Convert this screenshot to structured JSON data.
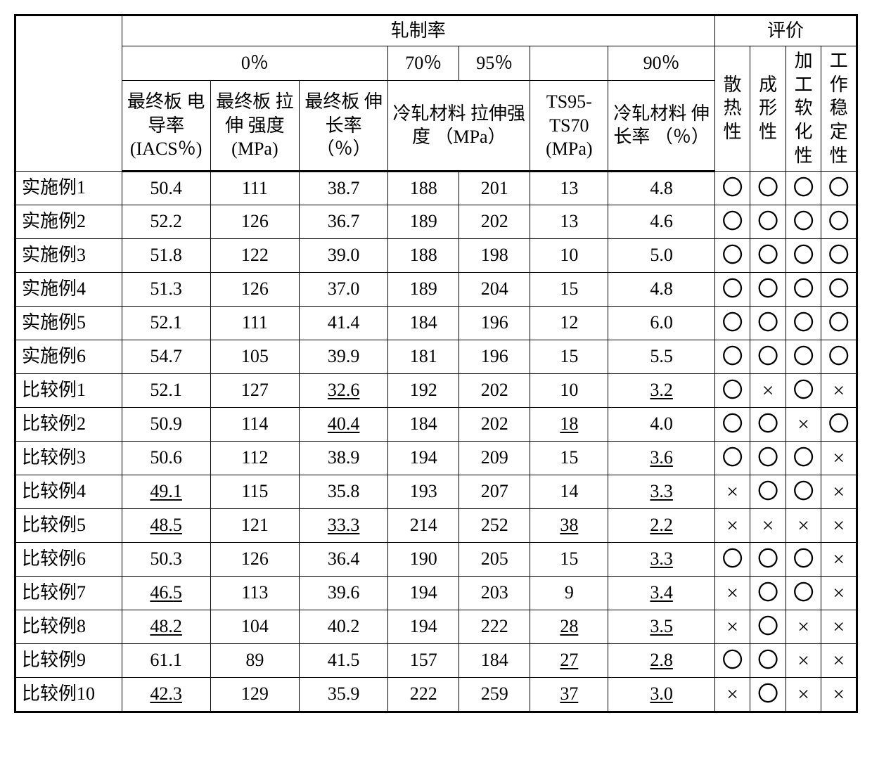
{
  "headers": {
    "rolling_rate": "轧制率",
    "evaluation": "评价",
    "pct0": "0％",
    "pct70": "70％",
    "pct95": "95％",
    "pct90": "90％",
    "cond": "最终板\n电导率\n(IACS％)",
    "ts0": "最终板\n拉伸\n强度\n(MPa)",
    "el0": "最终板\n伸长率\n（％）",
    "cold_ts": "冷轧材料\n拉伸强度\n（MPa）",
    "ts_diff": "TS95-\nTS70\n(MPa)",
    "cold_el": "冷轧材料\n伸长率\n（％）",
    "eval1": "散\n热\n性",
    "eval2": "成\n形\n性",
    "eval3": "加\n工\n软\n化\n性",
    "eval4": "工\n作\n稳\n定\n性"
  },
  "marks": {
    "o": "〇",
    "x": "×"
  },
  "rows": [
    {
      "label": "实施例1",
      "cond": {
        "v": "50.4"
      },
      "ts0": {
        "v": "111"
      },
      "el0": {
        "v": "38.7"
      },
      "ts70": {
        "v": "188"
      },
      "ts95": {
        "v": "201"
      },
      "diff": {
        "v": "13"
      },
      "coldel": {
        "v": "4.8"
      },
      "e": [
        "o",
        "o",
        "o",
        "o"
      ]
    },
    {
      "label": "实施例2",
      "cond": {
        "v": "52.2"
      },
      "ts0": {
        "v": "126"
      },
      "el0": {
        "v": "36.7"
      },
      "ts70": {
        "v": "189"
      },
      "ts95": {
        "v": "202"
      },
      "diff": {
        "v": "13"
      },
      "coldel": {
        "v": "4.6"
      },
      "e": [
        "o",
        "o",
        "o",
        "o"
      ]
    },
    {
      "label": "实施例3",
      "cond": {
        "v": "51.8"
      },
      "ts0": {
        "v": "122"
      },
      "el0": {
        "v": "39.0"
      },
      "ts70": {
        "v": "188"
      },
      "ts95": {
        "v": "198"
      },
      "diff": {
        "v": "10"
      },
      "coldel": {
        "v": "5.0"
      },
      "e": [
        "o",
        "o",
        "o",
        "o"
      ]
    },
    {
      "label": "实施例4",
      "cond": {
        "v": "51.3"
      },
      "ts0": {
        "v": "126"
      },
      "el0": {
        "v": "37.0"
      },
      "ts70": {
        "v": "189"
      },
      "ts95": {
        "v": "204"
      },
      "diff": {
        "v": "15"
      },
      "coldel": {
        "v": "4.8"
      },
      "e": [
        "o",
        "o",
        "o",
        "o"
      ]
    },
    {
      "label": "实施例5",
      "cond": {
        "v": "52.1"
      },
      "ts0": {
        "v": "111"
      },
      "el0": {
        "v": "41.4"
      },
      "ts70": {
        "v": "184"
      },
      "ts95": {
        "v": "196"
      },
      "diff": {
        "v": "12"
      },
      "coldel": {
        "v": "6.0"
      },
      "e": [
        "o",
        "o",
        "o",
        "o"
      ]
    },
    {
      "label": "实施例6",
      "cond": {
        "v": "54.7"
      },
      "ts0": {
        "v": "105"
      },
      "el0": {
        "v": "39.9"
      },
      "ts70": {
        "v": "181"
      },
      "ts95": {
        "v": "196"
      },
      "diff": {
        "v": "15"
      },
      "coldel": {
        "v": "5.5"
      },
      "e": [
        "o",
        "o",
        "o",
        "o"
      ]
    },
    {
      "label": "比较例1",
      "cond": {
        "v": "52.1"
      },
      "ts0": {
        "v": "127"
      },
      "el0": {
        "v": "32.6",
        "u": true
      },
      "ts70": {
        "v": "192"
      },
      "ts95": {
        "v": "202"
      },
      "diff": {
        "v": "10"
      },
      "coldel": {
        "v": "3.2",
        "u": true
      },
      "e": [
        "o",
        "x",
        "o",
        "x"
      ]
    },
    {
      "label": "比较例2",
      "cond": {
        "v": "50.9"
      },
      "ts0": {
        "v": "114"
      },
      "el0": {
        "v": "40.4",
        "u": true
      },
      "ts70": {
        "v": "184"
      },
      "ts95": {
        "v": "202"
      },
      "diff": {
        "v": "18",
        "u": true
      },
      "coldel": {
        "v": "4.0"
      },
      "e": [
        "o",
        "o",
        "x",
        "o"
      ]
    },
    {
      "label": "比较例3",
      "cond": {
        "v": "50.6"
      },
      "ts0": {
        "v": "112"
      },
      "el0": {
        "v": "38.9"
      },
      "ts70": {
        "v": "194"
      },
      "ts95": {
        "v": "209"
      },
      "diff": {
        "v": "15"
      },
      "coldel": {
        "v": "3.6",
        "u": true
      },
      "e": [
        "o",
        "o",
        "o",
        "x"
      ]
    },
    {
      "label": "比较例4",
      "cond": {
        "v": "49.1",
        "u": true
      },
      "ts0": {
        "v": "115"
      },
      "el0": {
        "v": "35.8"
      },
      "ts70": {
        "v": "193"
      },
      "ts95": {
        "v": "207"
      },
      "diff": {
        "v": "14"
      },
      "coldel": {
        "v": "3.3",
        "u": true
      },
      "e": [
        "x",
        "o",
        "o",
        "x"
      ]
    },
    {
      "label": "比较例5",
      "cond": {
        "v": "48.5",
        "u": true
      },
      "ts0": {
        "v": "121"
      },
      "el0": {
        "v": "33.3",
        "u": true
      },
      "ts70": {
        "v": "214"
      },
      "ts95": {
        "v": "252"
      },
      "diff": {
        "v": "38",
        "u": true
      },
      "coldel": {
        "v": "2.2",
        "u": true
      },
      "e": [
        "x",
        "x",
        "x",
        "x"
      ]
    },
    {
      "label": "比较例6",
      "cond": {
        "v": "50.3"
      },
      "ts0": {
        "v": "126"
      },
      "el0": {
        "v": "36.4"
      },
      "ts70": {
        "v": "190"
      },
      "ts95": {
        "v": "205"
      },
      "diff": {
        "v": "15"
      },
      "coldel": {
        "v": "3.3",
        "u": true
      },
      "e": [
        "o",
        "o",
        "o",
        "x"
      ]
    },
    {
      "label": "比较例7",
      "cond": {
        "v": "46.5",
        "u": true
      },
      "ts0": {
        "v": "113"
      },
      "el0": {
        "v": "39.6"
      },
      "ts70": {
        "v": "194"
      },
      "ts95": {
        "v": "203"
      },
      "diff": {
        "v": "9"
      },
      "coldel": {
        "v": "3.4",
        "u": true
      },
      "e": [
        "x",
        "o",
        "o",
        "x"
      ]
    },
    {
      "label": "比较例8",
      "cond": {
        "v": "48.2",
        "u": true
      },
      "ts0": {
        "v": "104"
      },
      "el0": {
        "v": "40.2"
      },
      "ts70": {
        "v": "194"
      },
      "ts95": {
        "v": "222"
      },
      "diff": {
        "v": "28",
        "u": true
      },
      "coldel": {
        "v": "3.5",
        "u": true
      },
      "e": [
        "x",
        "o",
        "x",
        "x"
      ]
    },
    {
      "label": "比较例9",
      "cond": {
        "v": "61.1"
      },
      "ts0": {
        "v": "89"
      },
      "el0": {
        "v": "41.5"
      },
      "ts70": {
        "v": "157"
      },
      "ts95": {
        "v": "184"
      },
      "diff": {
        "v": "27",
        "u": true
      },
      "coldel": {
        "v": "2.8",
        "u": true
      },
      "e": [
        "o",
        "o",
        "x",
        "x"
      ]
    },
    {
      "label": "比较例10",
      "cond": {
        "v": "42.3",
        "u": true
      },
      "ts0": {
        "v": "129"
      },
      "el0": {
        "v": "35.9"
      },
      "ts70": {
        "v": "222"
      },
      "ts95": {
        "v": "259"
      },
      "diff": {
        "v": "37",
        "u": true
      },
      "coldel": {
        "v": "3.0",
        "u": true
      },
      "e": [
        "x",
        "o",
        "x",
        "x"
      ]
    }
  ]
}
